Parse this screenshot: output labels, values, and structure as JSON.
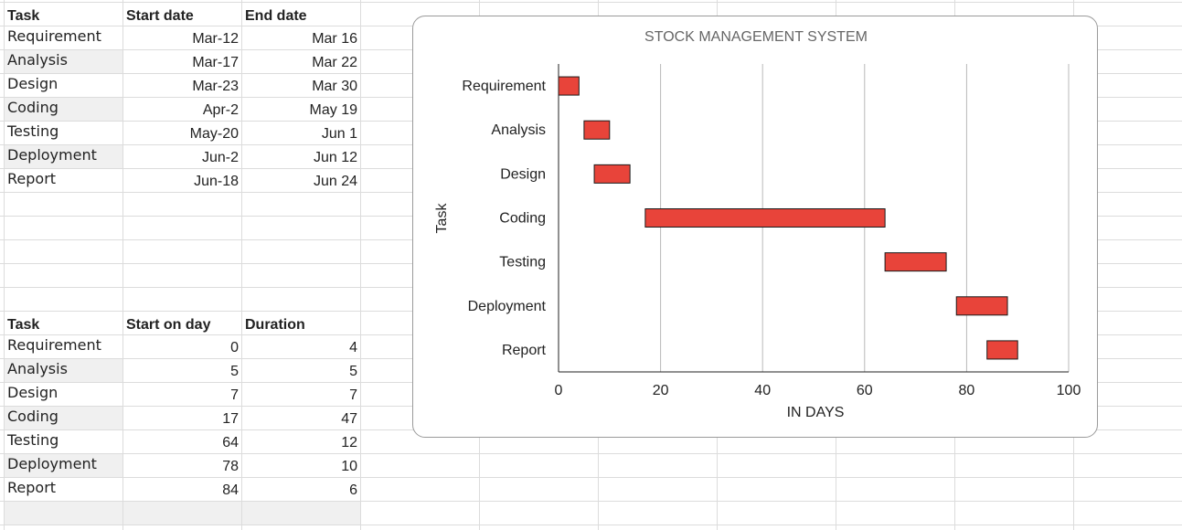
{
  "sheet": {
    "table1": {
      "headers": [
        "Task",
        "Start date",
        "End date"
      ],
      "rows": [
        [
          "Requirement",
          "Mar-12",
          "Mar 16"
        ],
        [
          "Analysis",
          "Mar-17",
          "Mar 22"
        ],
        [
          "Design",
          "Mar-23",
          "Mar 30"
        ],
        [
          "Coding",
          "Apr-2",
          "May 19"
        ],
        [
          "Testing",
          "May-20",
          "Jun 1"
        ],
        [
          "Deployment",
          "Jun-2",
          "Jun 12"
        ],
        [
          "Report",
          "Jun-18",
          "Jun 24"
        ]
      ]
    },
    "table2": {
      "headers": [
        "Task",
        "Start on day",
        "Duration"
      ],
      "rows": [
        [
          "Requirement",
          "0",
          "4"
        ],
        [
          "Analysis",
          "5",
          "5"
        ],
        [
          "Design",
          "7",
          "7"
        ],
        [
          "Coding",
          "17",
          "47"
        ],
        [
          "Testing",
          "64",
          "12"
        ],
        [
          "Deployment",
          "78",
          "10"
        ],
        [
          "Report",
          "84",
          "6"
        ]
      ]
    }
  },
  "colors": {
    "bar_fill": "#e8443a",
    "bar_stroke": "#1a1a1a",
    "gridline": "#b8b8b8"
  },
  "chart_data": {
    "type": "bar",
    "orientation": "horizontal",
    "stacked": true,
    "title": "STOCK MANAGEMENT SYSTEM",
    "xlabel": "IN DAYS",
    "ylabel": "Task",
    "categories": [
      "Requirement",
      "Analysis",
      "Design",
      "Coding",
      "Testing",
      "Deployment",
      "Report"
    ],
    "series": [
      {
        "name": "Start on day",
        "values": [
          0,
          5,
          7,
          17,
          64,
          78,
          84
        ],
        "visible": false
      },
      {
        "name": "Duration",
        "values": [
          4,
          5,
          7,
          47,
          12,
          10,
          6
        ],
        "visible": true
      }
    ],
    "xlim": [
      0,
      100
    ],
    "xticks": [
      0,
      20,
      40,
      60,
      80,
      100
    ],
    "grid": true,
    "legend": "none"
  }
}
